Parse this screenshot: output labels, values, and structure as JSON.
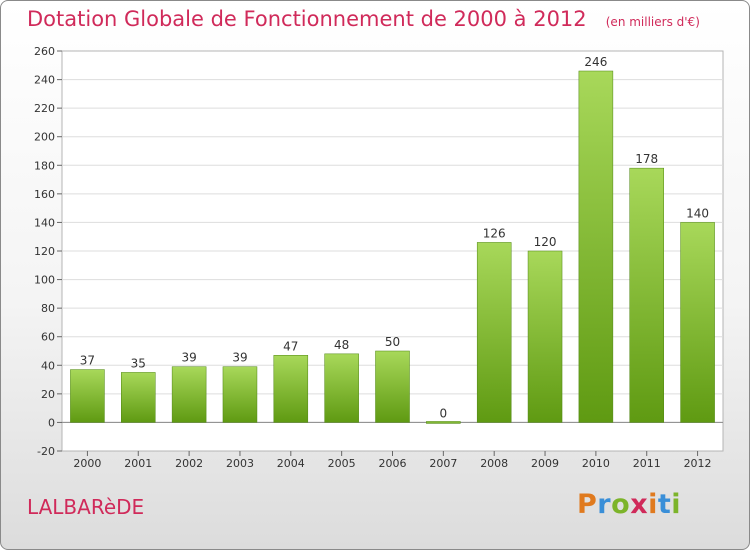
{
  "title": "Dotation Globale de Fonctionnement de 2000 à 2012",
  "subtitle": "(en milliers d'€)",
  "commune": "LALBARèDE",
  "logo": {
    "letters": [
      "P",
      "r",
      "o",
      "x",
      "i",
      "t",
      "i"
    ],
    "colors": [
      "#e07a1e",
      "#3a8fd8",
      "#7cb42a",
      "#d02a5a",
      "#e07a1e",
      "#3a8fd8",
      "#7cb42a"
    ]
  },
  "colors": {
    "bar_light": "#a8d85a",
    "bar_dark": "#5f9a12",
    "accent": "#d02a5a"
  },
  "chart_data": {
    "type": "bar",
    "categories": [
      "2000",
      "2001",
      "2002",
      "2003",
      "2004",
      "2005",
      "2006",
      "2007",
      "2008",
      "2009",
      "2010",
      "2011",
      "2012"
    ],
    "values": [
      37,
      35,
      39,
      39,
      47,
      48,
      50,
      0,
      126,
      120,
      246,
      178,
      140
    ],
    "data_labels": [
      "37",
      "35",
      "39",
      "39",
      "47",
      "48",
      "50",
      "0",
      "126",
      "120",
      "246",
      "178",
      "140"
    ],
    "ylim": [
      -20,
      260
    ],
    "yticks": [
      "-20",
      "0",
      "20",
      "40",
      "60",
      "80",
      "100",
      "120",
      "140",
      "160",
      "180",
      "200",
      "220",
      "240",
      "260"
    ],
    "grid": true,
    "legend": "none"
  }
}
